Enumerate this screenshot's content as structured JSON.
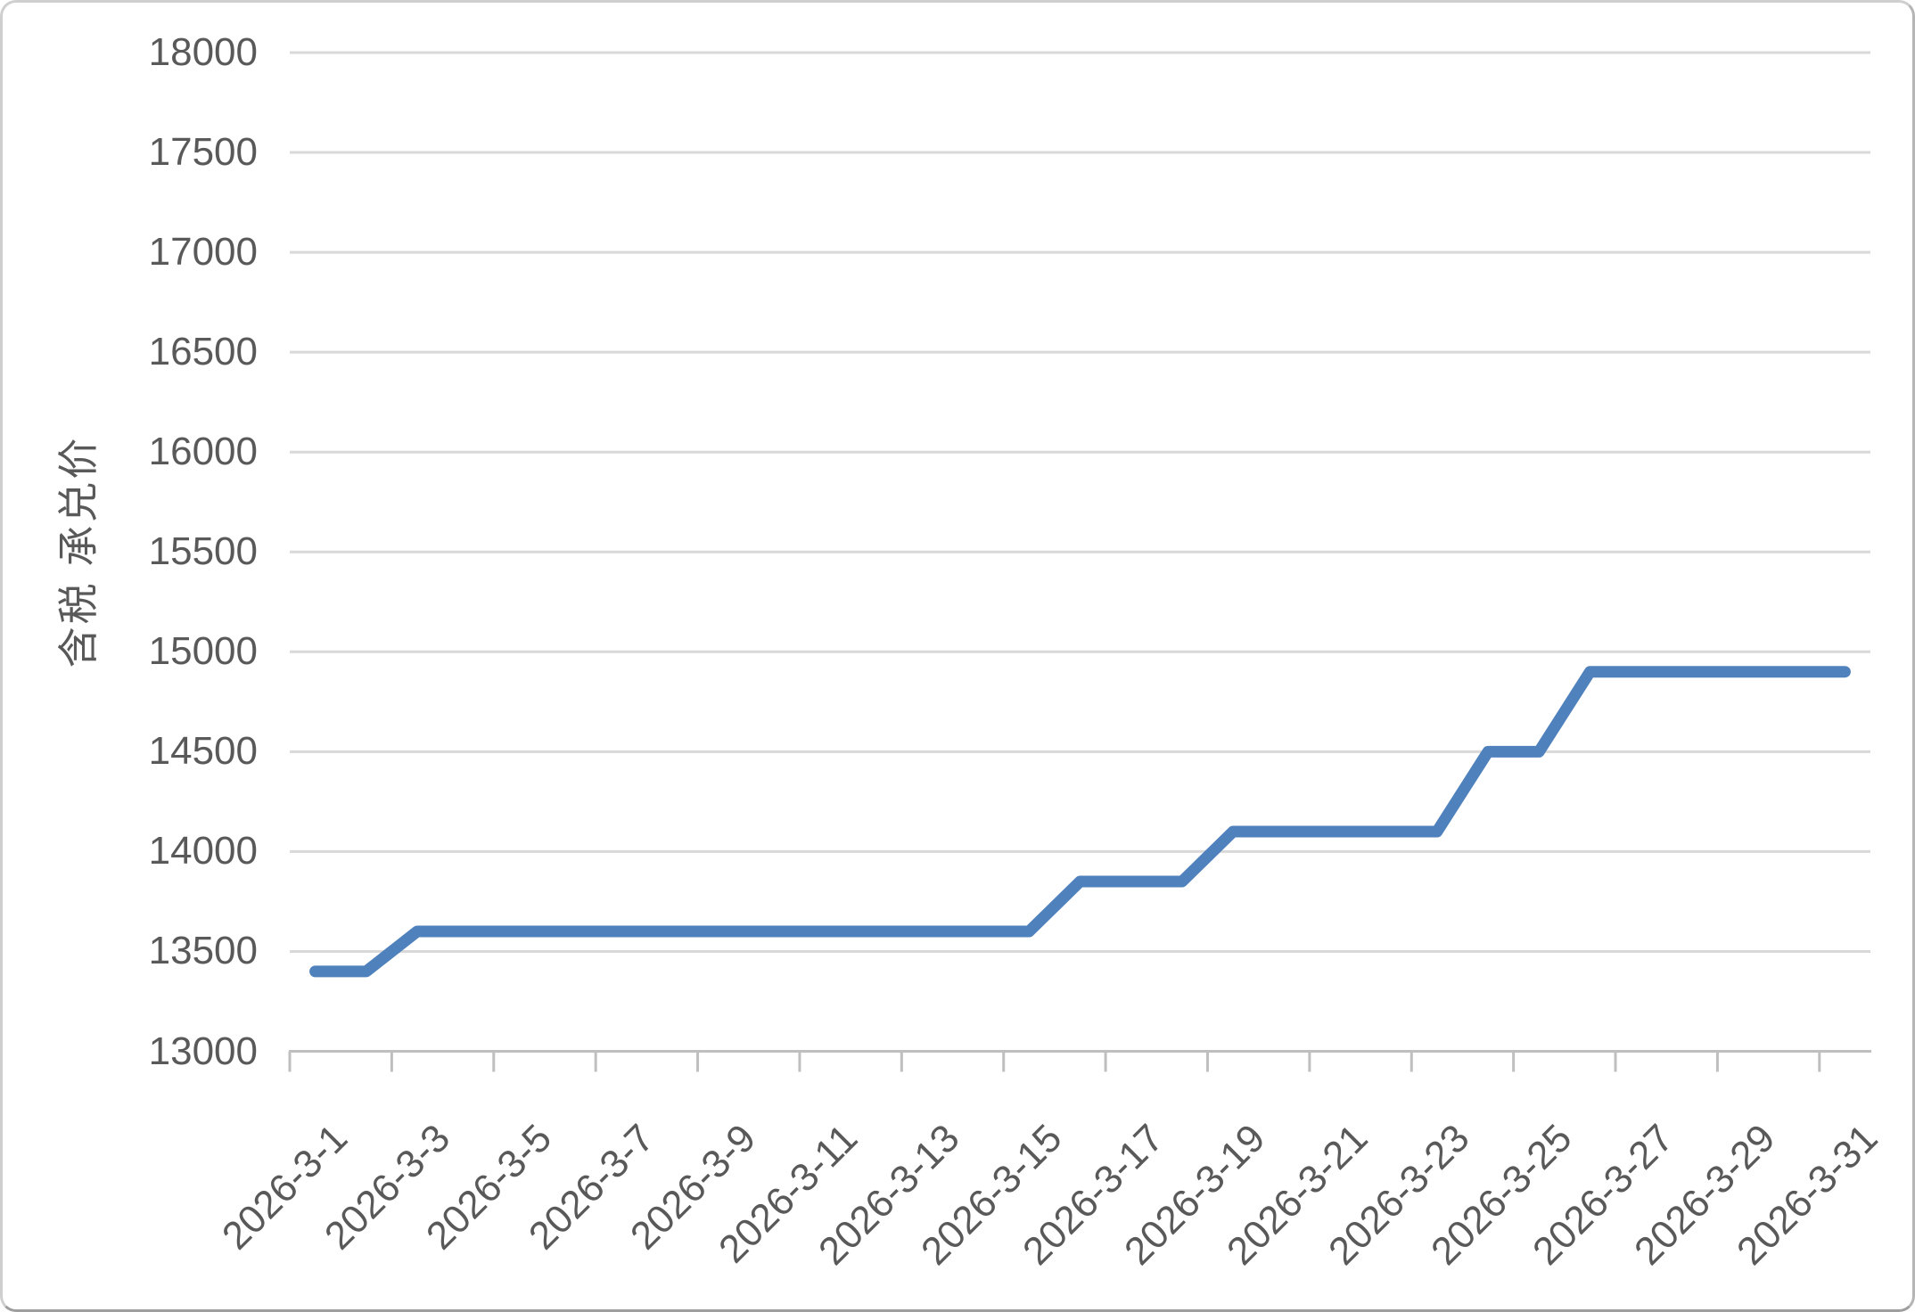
{
  "chart_data": {
    "type": "line",
    "title": "",
    "xlabel": "",
    "ylabel": "含税 承兑价",
    "categories": [
      "2026-3-1",
      "2026-3-2",
      "2026-3-3",
      "2026-3-4",
      "2026-3-5",
      "2026-3-6",
      "2026-3-7",
      "2026-3-8",
      "2026-3-9",
      "2026-3-10",
      "2026-3-11",
      "2026-3-12",
      "2026-3-13",
      "2026-3-14",
      "2026-3-15",
      "2026-3-16",
      "2026-3-17",
      "2026-3-18",
      "2026-3-19",
      "2026-3-20",
      "2026-3-21",
      "2026-3-22",
      "2026-3-23",
      "2026-3-24",
      "2026-3-25",
      "2026-3-26",
      "2026-3-27",
      "2026-3-28",
      "2026-3-29",
      "2026-3-30",
      "2026-3-31"
    ],
    "values": [
      13400,
      13400,
      13600,
      13600,
      13600,
      13600,
      13600,
      13600,
      13600,
      13600,
      13600,
      13600,
      13600,
      13600,
      13600,
      13850,
      13850,
      13850,
      14100,
      14100,
      14100,
      14100,
      14100,
      14500,
      14500,
      14900,
      14900,
      14900,
      14900,
      14900,
      14900
    ],
    "x_tick_labels": [
      "2026-3-1",
      "2026-3-3",
      "2026-3-5",
      "2026-3-7",
      "2026-3-9",
      "2026-3-11",
      "2026-3-13",
      "2026-3-15",
      "2026-3-17",
      "2026-3-19",
      "2026-3-21",
      "2026-3-23",
      "2026-3-25",
      "2026-3-27",
      "2026-3-29",
      "2026-3-31"
    ],
    "y_tick_labels": [
      "13000",
      "13500",
      "14000",
      "14500",
      "15000",
      "15500",
      "16000",
      "16500",
      "17000",
      "17500",
      "18000"
    ],
    "ylim": [
      13000,
      18000
    ],
    "y_step": 500,
    "grid": true,
    "legend": "none",
    "line_color": "#4F81BD",
    "grid_color": "#D9D9D9",
    "axis_color": "#BFBFBF",
    "text_color": "#595959"
  }
}
